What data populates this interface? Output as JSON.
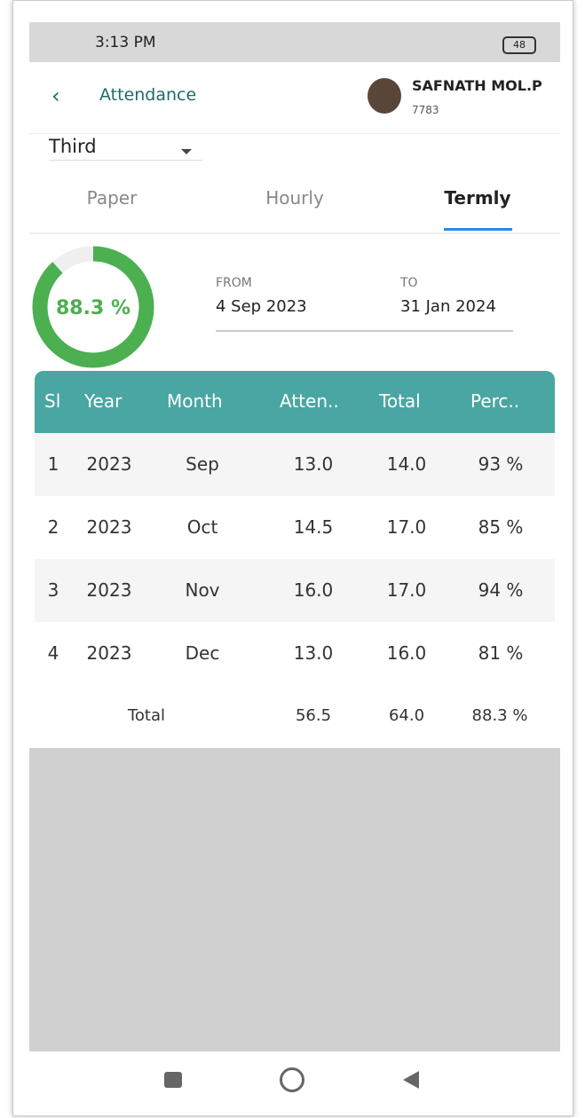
{
  "status_bar": {
    "time": "3:13 PM",
    "battery": "48"
  },
  "header": {
    "title": "Attendance",
    "user_name": "SAFNATH MOL.P",
    "user_id": "7783"
  },
  "selector": {
    "value": "Third"
  },
  "tabs": [
    "Paper",
    "Hourly",
    "Termly"
  ],
  "summary": {
    "progress": {
      "value": 88.3,
      "label": "88.3 %"
    },
    "from_label": "FROM",
    "from_date": "4 Sep 2023",
    "to_label": "TO",
    "to_date": "31 Jan 2024"
  },
  "table": {
    "columns": [
      "Sl",
      "Year",
      "Month",
      "Atten..",
      "Total",
      "Perc.."
    ],
    "rows": [
      [
        "1",
        "2023",
        "Sep",
        "13.0",
        "14.0",
        "93 %"
      ],
      [
        "2",
        "2023",
        "Oct",
        "14.5",
        "17.0",
        "85 %"
      ],
      [
        "3",
        "2023",
        "Nov",
        "16.0",
        "17.0",
        "94 %"
      ],
      [
        "4",
        "2023",
        "Dec",
        "13.0",
        "16.0",
        "81 %"
      ]
    ],
    "total_row": [
      "Total",
      "56.5",
      "64.0",
      "88.3 %"
    ]
  }
}
